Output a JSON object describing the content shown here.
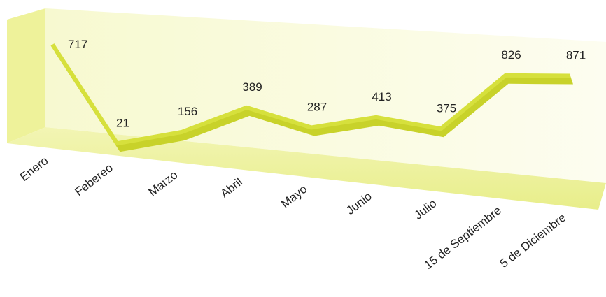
{
  "chart_data": {
    "type": "line",
    "categories": [
      "Enero",
      "Febereo",
      "Marzo",
      "Abril",
      "Mayo",
      "Junio",
      "Julio",
      "15 de Septiembre",
      "5 de Diciembre"
    ],
    "values": [
      717,
      21,
      156,
      389,
      287,
      413,
      375,
      826,
      871
    ],
    "color": "#d6e03c"
  }
}
